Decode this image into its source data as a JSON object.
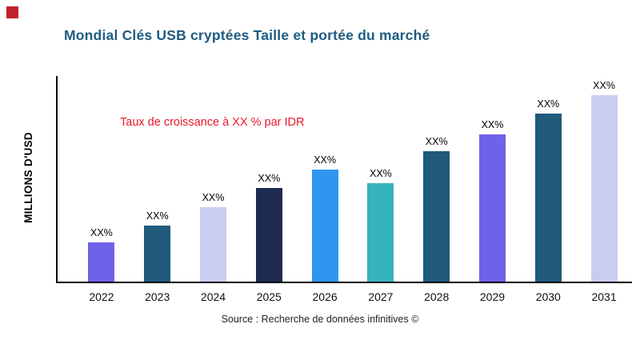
{
  "title": "Mondial Clés USB cryptées Taille et portée du marché",
  "annotation": "Taux de croissance à XX % par IDR",
  "ylabel": "MILLIONS D'USD",
  "source": "Source : Recherche de données infinitives ©",
  "colors": {
    "title": "#1f5c82",
    "annotation": "#e8192c",
    "brand_mark": "#c2202a",
    "axis": "#000000"
  },
  "chart_data": {
    "type": "bar",
    "title": "Mondial Clés USB cryptées Taille et portée du marché",
    "xlabel": "",
    "ylabel": "MILLIONS D'USD",
    "categories": [
      "2022",
      "2023",
      "2024",
      "2025",
      "2026",
      "2027",
      "2028",
      "2029",
      "2030",
      "2031"
    ],
    "values": [
      21,
      30,
      40,
      50,
      60,
      53,
      70,
      79,
      90,
      100
    ],
    "bar_labels": [
      "XX%",
      "XX%",
      "XX%",
      "XX%",
      "XX%",
      "XX%",
      "XX%",
      "XX%",
      "XX%",
      "XX%"
    ],
    "bar_colors": [
      "#6f61e8",
      "#20597c",
      "#c9cdf1",
      "#1c2951",
      "#2e96f0",
      "#36b3bd",
      "#20597c",
      "#6f61e8",
      "#20597c",
      "#c9cdf1"
    ],
    "ylim": [
      0,
      110
    ],
    "grid": false,
    "legend": false,
    "annotation": "Taux de croissance à XX % par IDR"
  }
}
